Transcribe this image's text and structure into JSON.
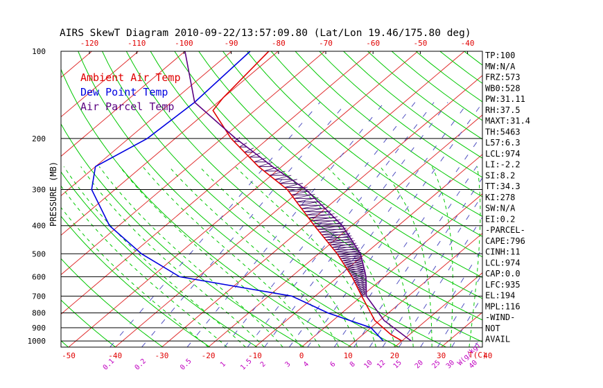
{
  "chart_data": {
    "type": "line",
    "title": "AIRS SkewT Diagram 2010-09-22/13:57:09.80 (Lat/Lon 19.46/175.80 deg)",
    "ylabel": "PRESSURE (MB)",
    "xlabel": "T(C)",
    "mixing_ratio_unit": "W(g/kg)",
    "pressure_levels": [
      100,
      200,
      300,
      400,
      500,
      600,
      700,
      800,
      900,
      1000
    ],
    "top_temp_ticks": [
      -120,
      -110,
      -100,
      -90,
      -80,
      -70,
      -60,
      -50,
      -40
    ],
    "bottom_temp_ticks": [
      -50,
      -40,
      -30,
      -20,
      -10,
      0,
      10,
      20,
      30,
      40
    ],
    "mixing_ratio_labels": [
      "0.1",
      "0.2",
      "0.5",
      "1",
      "1.5",
      "2",
      "3",
      "4",
      "6",
      "8",
      "10",
      "12",
      "15",
      "20",
      "25",
      "30",
      "40"
    ],
    "legend": [
      "Ambient Air Temp",
      "Dew Point Temp",
      "Air Parcel Temp"
    ],
    "series": [
      {
        "name": "Ambient Air Temp",
        "color": "#e00000",
        "points": [
          [
            100,
            -82
          ],
          [
            145,
            -80
          ],
          [
            160,
            -79
          ],
          [
            200,
            -68
          ],
          [
            250,
            -55
          ],
          [
            300,
            -43
          ],
          [
            400,
            -28
          ],
          [
            500,
            -16
          ],
          [
            600,
            -7
          ],
          [
            700,
            0
          ],
          [
            850,
            9
          ],
          [
            950,
            16
          ],
          [
            1000,
            20
          ]
        ]
      },
      {
        "name": "Dew Point Temp",
        "color": "#0000e0",
        "points": [
          [
            100,
            -86
          ],
          [
            150,
            -85
          ],
          [
            200,
            -86
          ],
          [
            250,
            -90
          ],
          [
            300,
            -85
          ],
          [
            400,
            -72
          ],
          [
            500,
            -58
          ],
          [
            600,
            -44
          ],
          [
            700,
            -15
          ],
          [
            800,
            -3
          ],
          [
            900,
            10
          ],
          [
            1000,
            16
          ]
        ]
      },
      {
        "name": "Air Parcel Temp",
        "color": "#5a0080",
        "points": [
          [
            100,
            -100
          ],
          [
            150,
            -85
          ],
          [
            200,
            -67
          ],
          [
            250,
            -52
          ],
          [
            300,
            -39
          ],
          [
            400,
            -22
          ],
          [
            500,
            -11
          ],
          [
            600,
            -4
          ],
          [
            700,
            1
          ],
          [
            850,
            11
          ],
          [
            1000,
            22
          ]
        ]
      }
    ],
    "indices": [
      "TP:100",
      "MW:N/A",
      "FRZ:573",
      "WB0:528",
      "PW:31.11",
      "RH:37.5",
      "MAXT:31.4",
      "TH:5463",
      "L57:6.3",
      "LCL:974",
      "LI:-2.2",
      "SI:8.2",
      "TT:34.3",
      "KI:278",
      "SW:N/A",
      "EI:0.2",
      "-PARCEL-",
      "CAPE:796",
      "CINH:11",
      "LCL:974",
      "CAP:0.0",
      "LFC:935",
      "EL:194",
      "MPL:116",
      "-WIND-",
      "NOT",
      "AVAIL"
    ]
  },
  "colors": {
    "isotherm": "#e03030",
    "dry_adiabat": "#00c800",
    "moist_adiabat": "#00c800",
    "mixing_ratio": "#5050c0",
    "label_red": "#e00000",
    "label_purple": "#c000c0",
    "legend_parcel": "#5a0080"
  }
}
